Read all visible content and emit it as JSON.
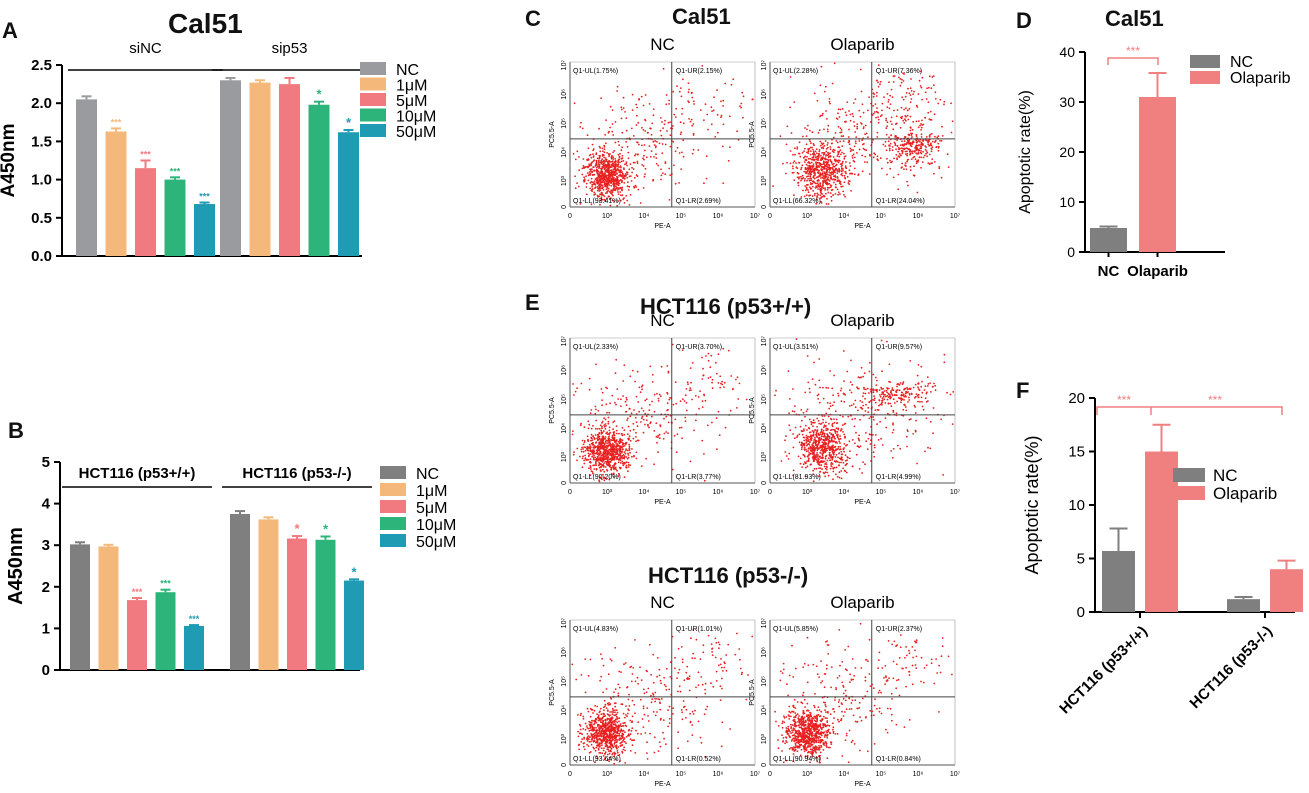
{
  "panels": {
    "A": {
      "letter": "A",
      "title": "Cal51"
    },
    "B": {
      "letter": "B"
    },
    "C": {
      "letter": "C",
      "title": "Cal51"
    },
    "D": {
      "letter": "D",
      "title": "Cal51"
    },
    "E": {
      "letter": "E",
      "title": "HCT116 (p53+/+)",
      "title2": "HCT116 (p53-/-)"
    },
    "F": {
      "letter": "F"
    }
  },
  "colors": {
    "NC": "#9a9b9f",
    "c1": "#f4b97a",
    "c5": "#f07a7f",
    "c10": "#2db47a",
    "c50": "#1f9bb4",
    "dotNC": "#2b9c9c",
    "Bnc": "#7f7f7f",
    "grayBar": "#7f7f7f",
    "pinkBar": "#f08080",
    "sig": "#f08080",
    "scatter": "#e82020"
  },
  "chart_data": [
    {
      "id": "A",
      "type": "bar",
      "title": "Cal51",
      "ylabel": "A450nm",
      "ylim": [
        0,
        2.5
      ],
      "yticks": [
        "0.0",
        "0.5",
        "1.0",
        "1.5",
        "2.0",
        "2.5"
      ],
      "groups": [
        "siNC",
        "sip53"
      ],
      "series": [
        {
          "name": "NC",
          "values": [
            2.05,
            2.3
          ],
          "errors": [
            0.04,
            0.03
          ],
          "sig": [
            "",
            ""
          ]
        },
        {
          "name": "1μM",
          "values": [
            1.63,
            2.27
          ],
          "errors": [
            0.04,
            0.03
          ],
          "sig": [
            "***",
            ""
          ]
        },
        {
          "name": "5μM",
          "values": [
            1.15,
            2.25
          ],
          "errors": [
            0.1,
            0.08
          ],
          "sig": [
            "***",
            ""
          ]
        },
        {
          "name": "10μM",
          "values": [
            1.0,
            1.98
          ],
          "errors": [
            0.03,
            0.04
          ],
          "sig": [
            "***",
            "*"
          ]
        },
        {
          "name": "50μM",
          "values": [
            0.68,
            1.62
          ],
          "errors": [
            0.02,
            0.03
          ],
          "sig": [
            "***",
            "*"
          ]
        }
      ]
    },
    {
      "id": "B",
      "type": "bar",
      "ylabel": "A450nm",
      "ylim": [
        0,
        5
      ],
      "yticks": [
        "0",
        "1",
        "2",
        "3",
        "4",
        "5"
      ],
      "groups": [
        "HCT116 (p53+/+)",
        "HCT116 (p53-/-)"
      ],
      "series": [
        {
          "name": "NC",
          "values": [
            3.02,
            3.75
          ],
          "errors": [
            0.05,
            0.07
          ],
          "sig": [
            "",
            ""
          ]
        },
        {
          "name": "1μM",
          "values": [
            2.97,
            3.62
          ],
          "errors": [
            0.04,
            0.05
          ],
          "sig": [
            "",
            ""
          ]
        },
        {
          "name": "5μM",
          "values": [
            1.68,
            3.16
          ],
          "errors": [
            0.05,
            0.06
          ],
          "sig": [
            "***",
            "*"
          ]
        },
        {
          "name": "10μM",
          "values": [
            1.87,
            3.13
          ],
          "errors": [
            0.06,
            0.08
          ],
          "sig": [
            "***",
            "*"
          ]
        },
        {
          "name": "50μM",
          "values": [
            1.06,
            2.15
          ],
          "errors": [
            0.02,
            0.03
          ],
          "sig": [
            "***",
            "*"
          ]
        }
      ]
    },
    {
      "id": "C",
      "type": "scatter",
      "title": "Cal51",
      "plots": [
        {
          "label": "NC",
          "UL": "Q1-UL(1.75%)",
          "UR": "Q1-UR(2.15%)",
          "LL": "Q1-LL(93.41%)",
          "LR": "Q1-LR(2.69%)"
        },
        {
          "label": "Olaparib",
          "UL": "Q1-UL(2.28%)",
          "UR": "Q1-UR(7.36%)",
          "LL": "Q1-LL(66.32%)",
          "LR": "Q1-LR(24.04%)"
        }
      ],
      "xlabel": "PE-A",
      "ylabel": "PC5.5-A"
    },
    {
      "id": "D",
      "type": "bar",
      "title": "Cal51",
      "ylabel": "Apoptotic rate(%)",
      "ylim": [
        0,
        40
      ],
      "yticks": [
        "0",
        "10",
        "20",
        "30",
        "40"
      ],
      "categories": [
        "NC",
        "Olaparib"
      ],
      "values": [
        4.8,
        31.0
      ],
      "errors": [
        0.3,
        4.8
      ],
      "significance": "***",
      "legend": [
        "NC",
        "Olaparib"
      ]
    },
    {
      "id": "E",
      "type": "scatter",
      "title": "HCT116 (p53+/+)",
      "plots": [
        {
          "label": "NC",
          "UL": "Q1-UL(2.33%)",
          "UR": "Q1-UR(3.70%)",
          "LL": "Q1-LL(90.20%)",
          "LR": "Q1-LR(3.77%)"
        },
        {
          "label": "Olaparib",
          "UL": "Q1-UL(3.51%)",
          "UR": "Q1-UR(9.57%)",
          "LL": "Q1-LL(81.93%)",
          "LR": "Q1-LR(4.99%)"
        }
      ],
      "title2": "HCT116 (p53-/-)",
      "plots2": [
        {
          "label": "NC",
          "UL": "Q1-UL(4.83%)",
          "UR": "Q1-UR(1.01%)",
          "LL": "Q1-LL(93.64%)",
          "LR": "Q1-LR(0.52%)"
        },
        {
          "label": "Olaparib",
          "UL": "Q1-UL(5.85%)",
          "UR": "Q1-UR(2.37%)",
          "LL": "Q1-LL(90.94%)",
          "LR": "Q1-LR(0.84%)"
        }
      ],
      "xlabel": "PE-A",
      "ylabel": "PC5.5-A"
    },
    {
      "id": "F",
      "type": "bar",
      "ylabel": "Apoptotic rate(%)",
      "ylim": [
        0,
        20
      ],
      "yticks": [
        "0",
        "5",
        "10",
        "15",
        "20"
      ],
      "categories": [
        "HCT116 (p53+/+)",
        "HCT116 (p53-/-)"
      ],
      "series": [
        {
          "name": "NC",
          "values": [
            5.7,
            1.2
          ],
          "errors": [
            2.1,
            0.2
          ]
        },
        {
          "name": "Olaparib",
          "values": [
            15.0,
            4.0
          ],
          "errors": [
            2.5,
            0.8
          ]
        }
      ],
      "significance": [
        "***",
        "***"
      ]
    }
  ],
  "flow_axis": {
    "xticks": [
      "0",
      "10²",
      "10⁴",
      "10⁶",
      "10⁷"
    ],
    "xticks2": [
      "0",
      "10³",
      "10⁴",
      "10⁵",
      "10⁶",
      "10⁷"
    ],
    "yticks": [
      "0",
      "10³",
      "10⁴",
      "10⁵",
      "10⁶",
      "10⁷"
    ]
  }
}
